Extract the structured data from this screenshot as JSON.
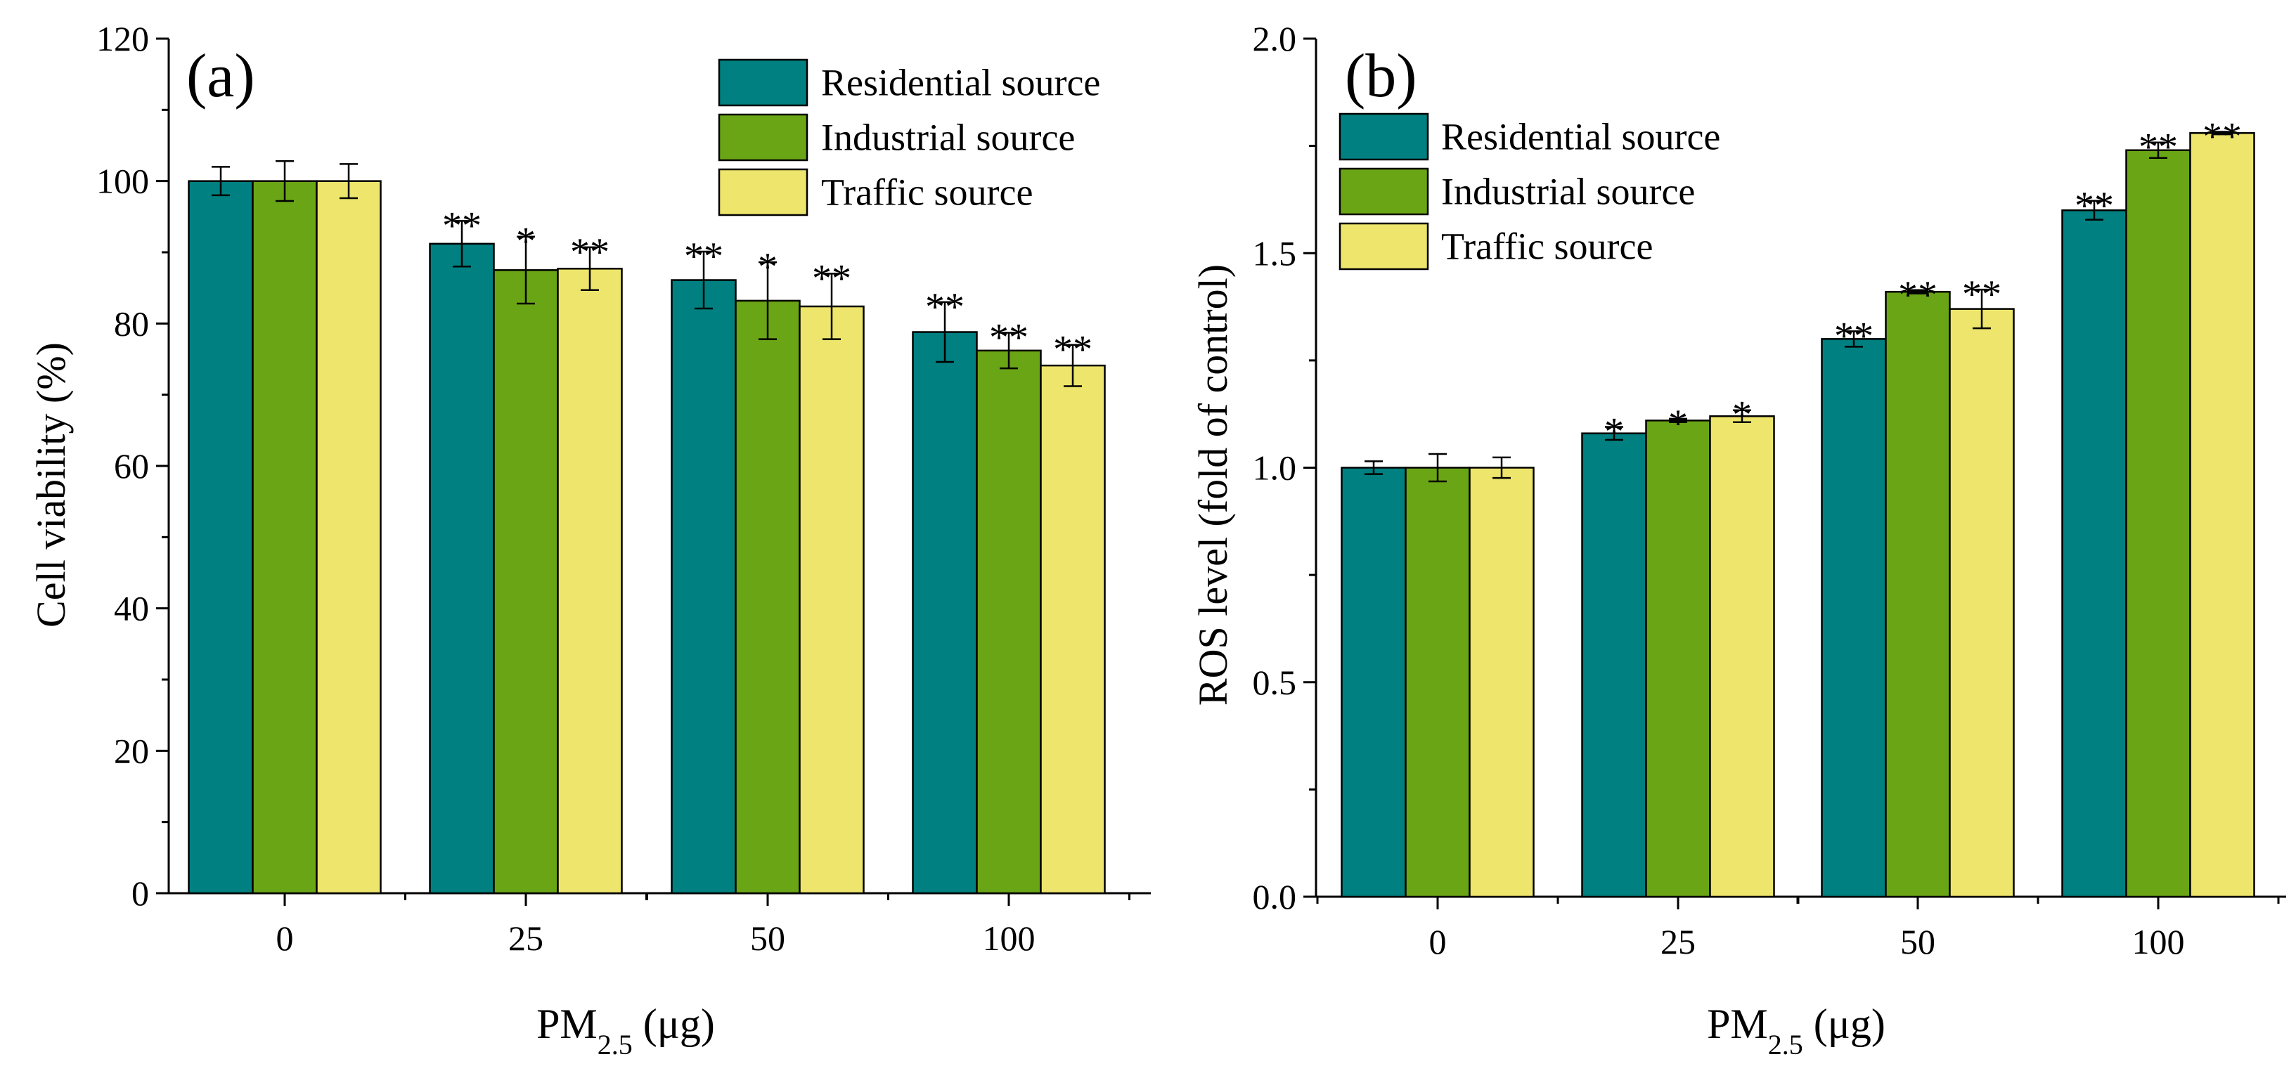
{
  "chart_data": [
    {
      "type": "bar",
      "panel_label": "(a)",
      "categories": [
        "0",
        "25",
        "50",
        "100"
      ],
      "ylabel": "Cell viability (%)",
      "xlabel": {
        "main": "PM",
        "sub": "2.5",
        "unit": " (μg)"
      },
      "ylim": [
        0,
        120
      ],
      "yticks": [
        "0",
        "20",
        "40",
        "60",
        "80",
        "100",
        "120"
      ],
      "legend_position": "top-right",
      "series": [
        {
          "name": "Residential source",
          "color": "#008080",
          "values": [
            100,
            91.2,
            86.1,
            78.8
          ],
          "errors": [
            2.0,
            3.2,
            4.0,
            4.2
          ],
          "sig": [
            "",
            "**",
            "**",
            "**"
          ]
        },
        {
          "name": "Industrial source",
          "color": "#6aa516",
          "values": [
            100,
            87.5,
            83.2,
            76.2
          ],
          "errors": [
            2.8,
            4.7,
            5.4,
            2.5
          ],
          "sig": [
            "",
            "*",
            "*",
            "**"
          ]
        },
        {
          "name": "Traffic source",
          "color": "#ede56c",
          "values": [
            100,
            87.7,
            82.4,
            74.1
          ],
          "errors": [
            2.4,
            3.0,
            4.6,
            2.9
          ],
          "sig": [
            "",
            "**",
            "**",
            "**"
          ]
        }
      ]
    },
    {
      "type": "bar",
      "panel_label": "(b)",
      "categories": [
        "0",
        "25",
        "50",
        "100"
      ],
      "ylabel": "ROS level (fold of control)",
      "xlabel": {
        "main": "PM",
        "sub": "2.5",
        "unit": " (μg)"
      },
      "ylim": [
        0,
        2.0
      ],
      "yticks": [
        "0.0",
        "0.5",
        "1.0",
        "1.5",
        "2.0"
      ],
      "legend_position": "top-left",
      "series": [
        {
          "name": "Residential source",
          "color": "#008080",
          "values": [
            1.0,
            1.08,
            1.3,
            1.6
          ],
          "errors": [
            0.015,
            0.015,
            0.018,
            0.022
          ],
          "sig": [
            "",
            "*",
            "**",
            "**"
          ]
        },
        {
          "name": "Industrial source",
          "color": "#6aa516",
          "values": [
            1.0,
            1.11,
            1.41,
            1.74
          ],
          "errors": [
            0.032,
            0.004,
            0.004,
            0.018
          ],
          "sig": [
            "",
            "*",
            "**",
            "**"
          ]
        },
        {
          "name": "Traffic source",
          "color": "#ede56c",
          "values": [
            1.0,
            1.12,
            1.37,
            1.78
          ],
          "errors": [
            0.024,
            0.014,
            0.045,
            0.003
          ],
          "sig": [
            "",
            "*",
            "**",
            "**"
          ]
        }
      ]
    }
  ]
}
